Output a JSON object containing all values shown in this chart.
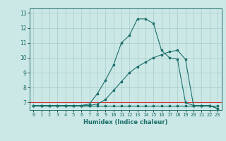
{
  "title": "",
  "xlabel": "Humidex (Indice chaleur)",
  "ylabel": "",
  "bg_color": "#cce8e6",
  "grid_color": "#aacfcc",
  "line_color": "#1a6e6a",
  "red_line_color": "#cc3333",
  "x_values": [
    0,
    1,
    2,
    3,
    4,
    5,
    6,
    7,
    8,
    9,
    10,
    11,
    12,
    13,
    14,
    15,
    16,
    17,
    18,
    19,
    20,
    21,
    22,
    23
  ],
  "line1": [
    6.8,
    6.8,
    6.8,
    6.8,
    6.8,
    6.8,
    6.8,
    6.8,
    6.8,
    6.8,
    6.8,
    6.8,
    6.8,
    6.8,
    6.8,
    6.8,
    6.8,
    6.8,
    6.8,
    6.8,
    6.8,
    6.8,
    6.8,
    6.8
  ],
  "line2": [
    6.8,
    6.8,
    6.8,
    6.8,
    6.8,
    6.8,
    6.8,
    6.9,
    7.6,
    8.5,
    9.5,
    11.0,
    11.5,
    12.6,
    12.6,
    12.3,
    10.5,
    10.0,
    9.9,
    7.0,
    6.8,
    6.8,
    6.8,
    6.6
  ],
  "line3": [
    6.8,
    6.8,
    6.8,
    6.8,
    6.8,
    6.8,
    6.8,
    6.8,
    6.9,
    7.2,
    7.8,
    8.4,
    9.0,
    9.4,
    9.7,
    10.0,
    10.2,
    10.4,
    10.5,
    9.9,
    6.8,
    6.8,
    6.8,
    6.6
  ],
  "xlim": [
    -0.5,
    23.5
  ],
  "ylim": [
    6.5,
    13.3
  ],
  "yticks": [
    7,
    8,
    9,
    10,
    11,
    12,
    13
  ],
  "xticks": [
    0,
    1,
    2,
    3,
    4,
    5,
    6,
    7,
    8,
    9,
    10,
    11,
    12,
    13,
    14,
    15,
    16,
    17,
    18,
    19,
    20,
    21,
    22,
    23
  ],
  "xlabel_fontsize": 6.0,
  "tick_fontsize": 5.0,
  "lw": 0.8,
  "ms": 1.8
}
